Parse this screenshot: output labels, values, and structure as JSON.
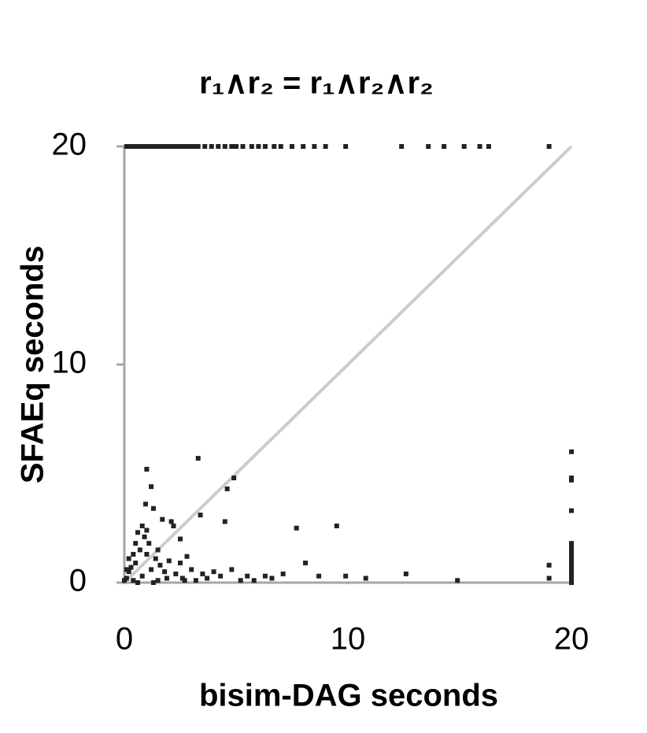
{
  "chart_data": {
    "type": "scatter",
    "title": "r₁∧r₂ = r₁∧r₂∧r₂",
    "x_label": "bisim-DAG seconds",
    "y_label": "SFAEq seconds",
    "xlim": [
      0,
      20
    ],
    "ylim": [
      0,
      20
    ],
    "xticks": [
      0,
      10,
      20
    ],
    "yticks": [
      0,
      10,
      20
    ],
    "axis_color": "#a6a6a6",
    "reference_line": {
      "x": [
        0,
        20
      ],
      "y": [
        0,
        20
      ],
      "color": "#cccccc"
    },
    "series": [
      {
        "color": "#222222",
        "x": [
          0.1,
          0.3,
          0.5,
          0.7,
          0.9,
          1.1,
          1.3,
          1.5,
          1.7,
          1.9,
          2.1,
          2.3,
          2.5,
          2.7,
          2.9,
          3.1,
          3.3,
          3.6,
          3.9,
          4.2,
          4.5,
          4.8,
          5.0,
          5.3,
          5.7,
          6.0,
          6.3,
          6.7,
          7.0,
          7.5,
          8.0,
          8.5,
          9.0,
          9.9,
          12.4,
          13.6,
          14.3,
          15.2,
          15.9,
          16.3,
          19.0,
          20,
          20,
          20,
          20,
          20,
          20,
          20,
          20,
          20,
          20,
          20,
          20,
          20,
          20,
          19,
          19,
          1.0,
          1.2,
          0.95,
          1.3,
          2.1,
          2.2,
          3.3,
          4.9,
          4.6,
          3.4,
          4.5,
          7.7,
          9.5,
          8.1,
          7.1,
          12.6,
          14.9,
          10.8,
          9.9,
          8.7,
          1.7,
          0.8,
          0.6,
          0.9,
          1.1,
          0.7,
          1.0,
          1.4,
          0.5,
          0.3,
          0.2,
          0.1,
          0,
          0.4,
          0.8,
          1.2,
          1.6,
          2.0,
          2.5,
          2.8,
          3.0,
          3.5,
          4.0,
          4.3,
          3.2,
          2.6,
          2.3,
          1.9,
          1.5,
          5.5,
          5.8,
          6.3,
          6.6,
          5.2,
          4.8,
          2.7,
          3.7,
          1.3,
          0.6,
          0.2,
          0.1,
          0.5,
          1.0,
          0.4,
          1.5,
          2.5,
          1.8
        ],
        "values": [
          20,
          20,
          20,
          20,
          20,
          20,
          20,
          20,
          20,
          20,
          20,
          20,
          20,
          20,
          20,
          20,
          20,
          20,
          20,
          20,
          20,
          20,
          20,
          20,
          20,
          20,
          20,
          20,
          20,
          20,
          20,
          20,
          20,
          20,
          20,
          20,
          20,
          20,
          20,
          20,
          20,
          0,
          0.2,
          0.4,
          0.6,
          0.8,
          1.0,
          1.2,
          1.4,
          1.6,
          1.8,
          3.3,
          4.7,
          4.8,
          6.0,
          0.2,
          0.8,
          5.2,
          4.4,
          3.6,
          3.4,
          2.8,
          2.6,
          5.7,
          4.8,
          4.3,
          3.1,
          2.8,
          2.5,
          2.6,
          0.9,
          0.4,
          0.4,
          0.1,
          0.2,
          0.3,
          0.3,
          2.9,
          2.6,
          2.3,
          2.1,
          1.8,
          1.5,
          1.3,
          1.1,
          0.9,
          0.7,
          0.5,
          0.2,
          0.1,
          0.1,
          0.3,
          0.6,
          0.8,
          1.0,
          0.9,
          1.2,
          0.6,
          0.4,
          0.5,
          0.3,
          0.1,
          0.2,
          0.4,
          0.2,
          0.1,
          0.3,
          0.1,
          0.3,
          0.2,
          0.1,
          0.6,
          0.1,
          0.2,
          0,
          0,
          1.1,
          0.6,
          1.8,
          2.4,
          1.3,
          1.5,
          2.0,
          0.5
        ]
      }
    ]
  }
}
